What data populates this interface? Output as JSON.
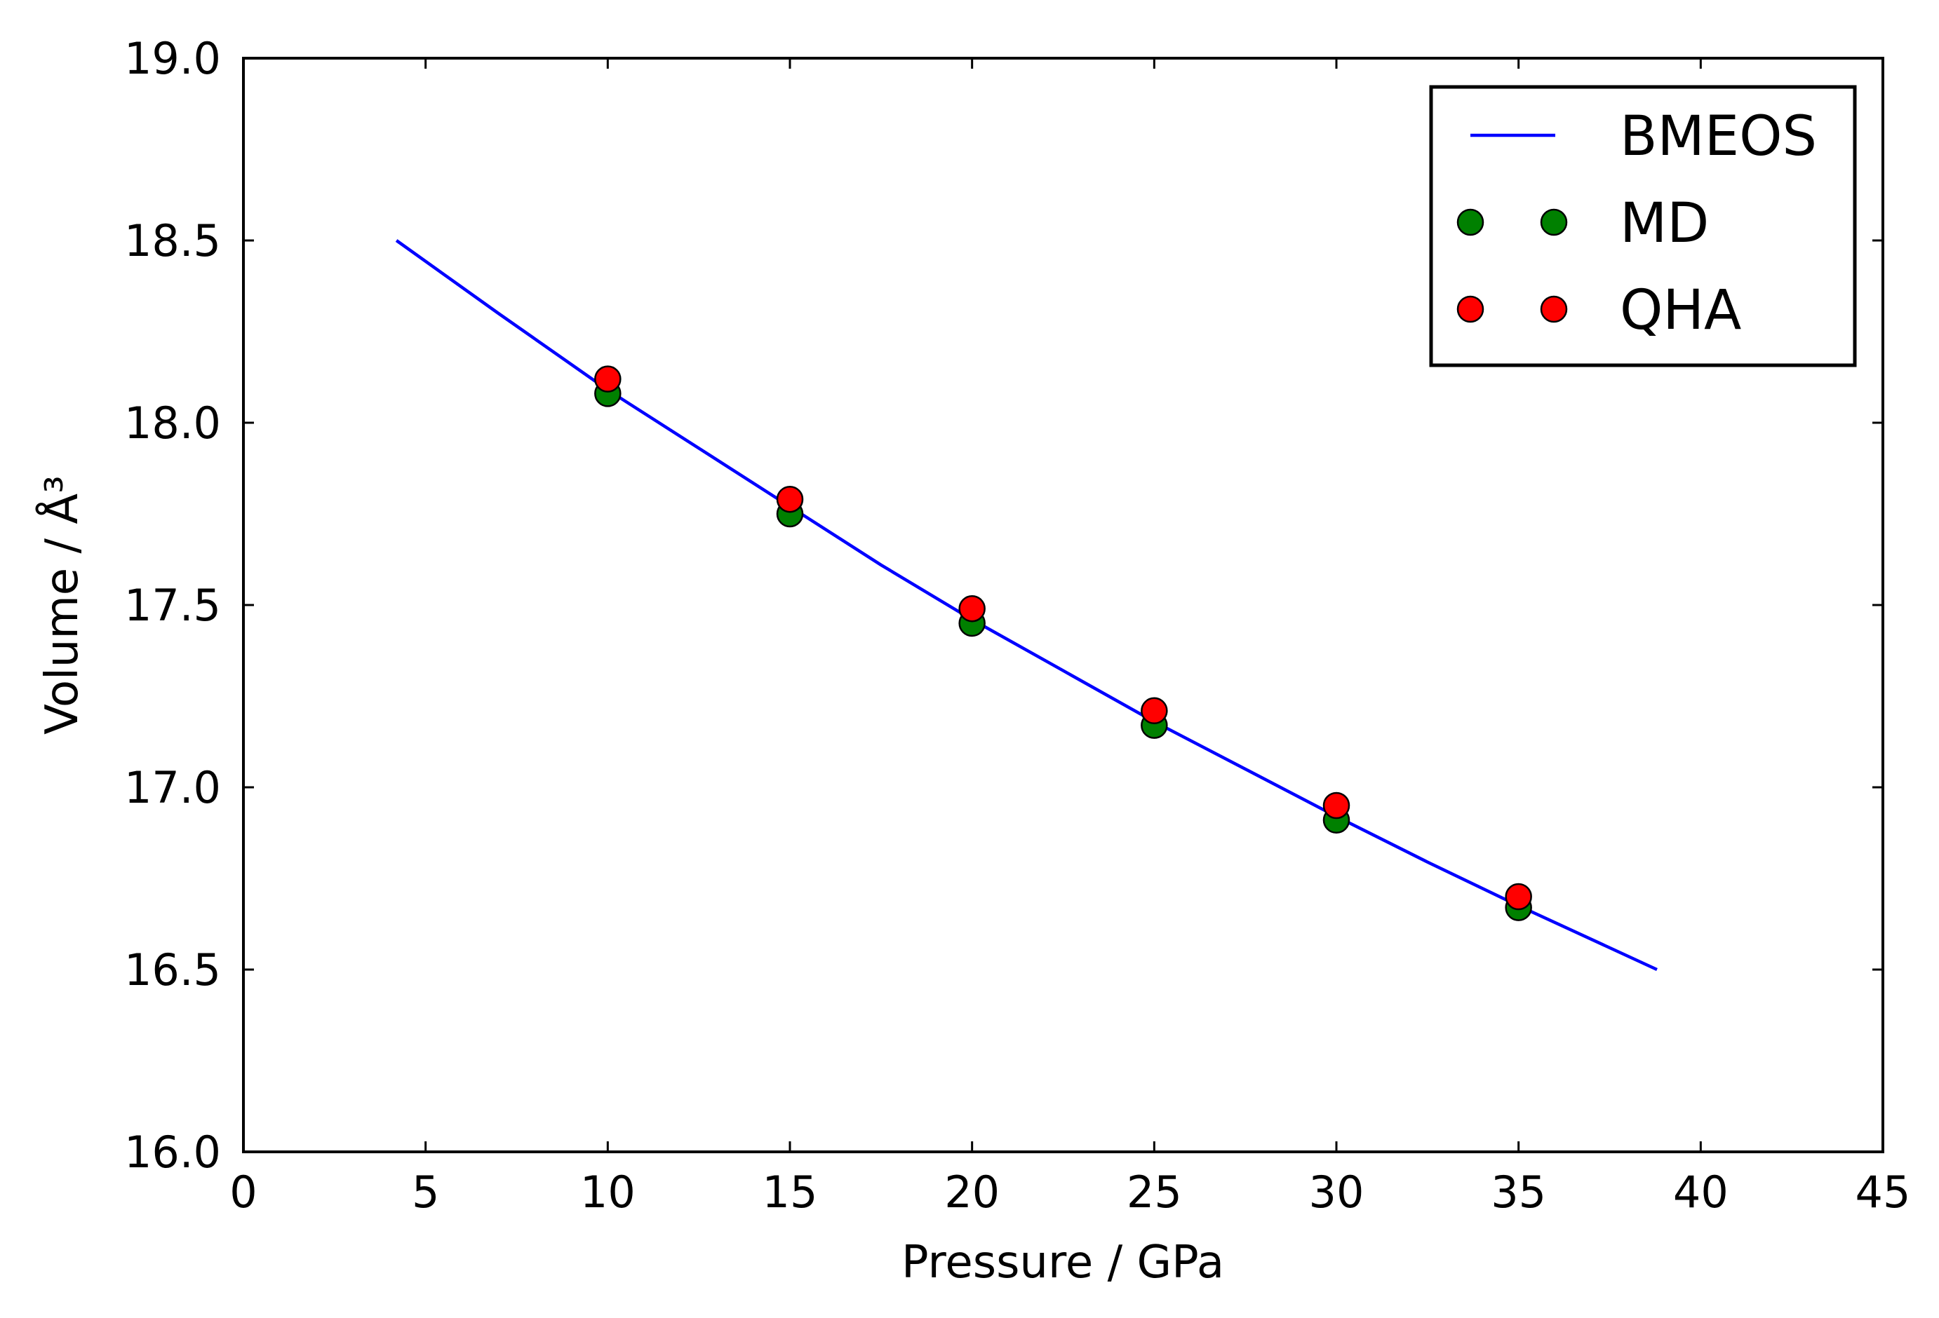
{
  "chart_data": {
    "type": "line",
    "title": "",
    "xlabel": "Pressure / GPa",
    "ylabel": "Volume / Å³",
    "xlim": [
      0,
      45
    ],
    "ylim": [
      16.0,
      19.0
    ],
    "xticks": [
      "0",
      "5",
      "10",
      "15",
      "20",
      "25",
      "30",
      "35",
      "40",
      "45"
    ],
    "yticks": [
      "16.0",
      "16.5",
      "17.0",
      "17.5",
      "18.0",
      "18.5",
      "19.0"
    ],
    "grid": false,
    "legend_position": "top-right",
    "series": [
      {
        "name": "BMEOS",
        "kind": "line",
        "color": "#0000ff",
        "x": [
          4.2,
          7,
          10,
          12.5,
          15,
          17.5,
          20,
          22.5,
          25,
          27.5,
          30,
          32.5,
          35,
          38.8
        ],
        "y": [
          18.5,
          18.3,
          18.09,
          17.93,
          17.77,
          17.61,
          17.46,
          17.32,
          17.18,
          17.05,
          16.92,
          16.795,
          16.675,
          16.5
        ]
      },
      {
        "name": "MD",
        "kind": "scatter",
        "color": "#008000",
        "x": [
          10,
          15,
          20,
          25,
          30,
          35
        ],
        "y": [
          18.08,
          17.75,
          17.45,
          17.17,
          16.91,
          16.67
        ]
      },
      {
        "name": "QHA",
        "kind": "scatter",
        "color": "#ff0000",
        "x": [
          10,
          15,
          20,
          25,
          30,
          35
        ],
        "y": [
          18.12,
          17.79,
          17.49,
          17.21,
          16.95,
          16.7
        ]
      }
    ]
  }
}
